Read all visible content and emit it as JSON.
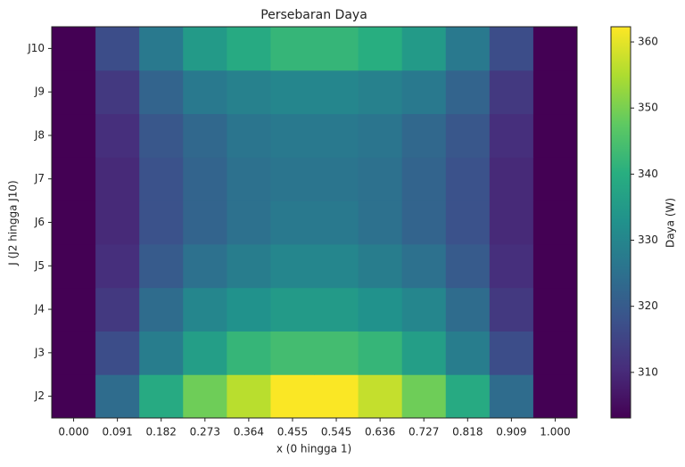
{
  "chart_data": {
    "type": "heatmap",
    "title": "Persebaran Daya",
    "xlabel": "x (0 hingga 1)",
    "ylabel": "J (J2 hingga J10)",
    "categories": [
      "0.000",
      "0.091",
      "0.182",
      "0.273",
      "0.364",
      "0.455",
      "0.545",
      "0.636",
      "0.727",
      "0.818",
      "0.909",
      "1.000"
    ],
    "rows": [
      "J2",
      "J3",
      "J4",
      "J5",
      "J6",
      "J7",
      "J8",
      "J9",
      "J10"
    ],
    "z": [
      [
        303,
        324,
        339,
        349,
        356,
        362,
        362,
        357,
        349,
        339,
        324,
        303
      ],
      [
        303,
        317,
        328,
        336,
        342,
        344,
        344,
        342,
        336,
        328,
        317,
        303
      ],
      [
        303,
        313,
        324,
        330,
        333,
        335,
        335,
        333,
        330,
        324,
        313,
        303
      ],
      [
        303,
        311,
        320,
        325,
        328,
        330,
        330,
        328,
        325,
        320,
        311,
        303
      ],
      [
        303,
        310,
        318,
        322,
        325,
        327,
        327,
        325,
        322,
        318,
        310,
        303
      ],
      [
        303,
        310,
        318,
        322,
        325,
        326,
        326,
        325,
        322,
        318,
        310,
        303
      ],
      [
        303,
        311,
        319,
        323,
        326,
        327,
        327,
        326,
        323,
        319,
        311,
        303
      ],
      [
        303,
        313,
        322,
        327,
        329,
        330,
        330,
        329,
        327,
        322,
        313,
        303
      ],
      [
        303,
        317,
        327,
        335,
        339,
        342,
        342,
        340,
        335,
        327,
        317,
        303
      ]
    ],
    "colormap": "viridis",
    "colorbar_label": "Daya (W)",
    "clim": [
      303.1,
      362.3
    ],
    "cticks": [
      310,
      320,
      330,
      340,
      350,
      360
    ]
  }
}
